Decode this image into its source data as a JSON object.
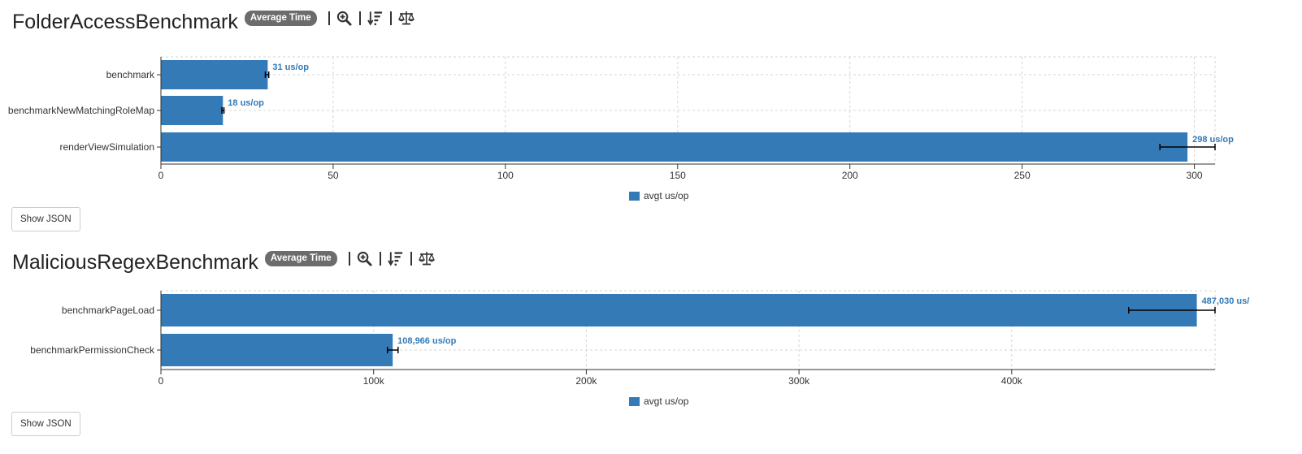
{
  "charts": [
    {
      "title": "FolderAccessBenchmark",
      "badge": "Average Time",
      "legend_label": "avgt us/op",
      "json_button": "Show JSON",
      "unit": "us/op"
    },
    {
      "title": "MaliciousRegexBenchmark",
      "badge": "Average Time",
      "legend_label": "avgt us/op",
      "json_button": "Show JSON",
      "unit": "us/op"
    }
  ],
  "icons": [
    "zoom-in-icon",
    "sort-descending-icon",
    "balance-scale-icon"
  ],
  "colors": {
    "bar": "#337ab7",
    "label": "#337ab7",
    "badge": "#6c6c6c"
  },
  "chart_data": [
    {
      "type": "bar",
      "orientation": "horizontal",
      "title": "FolderAccessBenchmark",
      "categories": [
        "benchmark",
        "benchmarkNewMatchingRoleMap",
        "renderViewSimulation"
      ],
      "series": [
        {
          "name": "avgt us/op",
          "values": [
            31,
            18,
            298
          ],
          "error_low": [
            30.3,
            17.7,
            290
          ],
          "error_high": [
            31.3,
            18.3,
            306
          ]
        }
      ],
      "data_labels": [
        "31 us/op",
        "18 us/op",
        "298 us/op"
      ],
      "xlim": [
        0,
        306
      ],
      "xticks": [
        0,
        50,
        100,
        150,
        200,
        250,
        300
      ],
      "xtick_labels": [
        "0",
        "50",
        "100",
        "150",
        "200",
        "250",
        "300"
      ],
      "grid": true,
      "legend": "bottom-center"
    },
    {
      "type": "bar",
      "orientation": "horizontal",
      "title": "MaliciousRegexBenchmark",
      "categories": [
        "benchmarkPageLoad",
        "benchmarkPermissionCheck"
      ],
      "series": [
        {
          "name": "avgt us/op",
          "values": [
            487030,
            108966
          ],
          "error_low": [
            455000,
            106500
          ],
          "error_high": [
            495600,
            111500
          ]
        }
      ],
      "data_labels": [
        "487,030 us/",
        "108,966 us/op"
      ],
      "xlim": [
        0,
        495600
      ],
      "xticks": [
        0,
        100000,
        200000,
        300000,
        400000
      ],
      "xtick_labels": [
        "0",
        "100k",
        "200k",
        "300k",
        "400k"
      ],
      "grid": true,
      "legend": "bottom-center"
    }
  ]
}
